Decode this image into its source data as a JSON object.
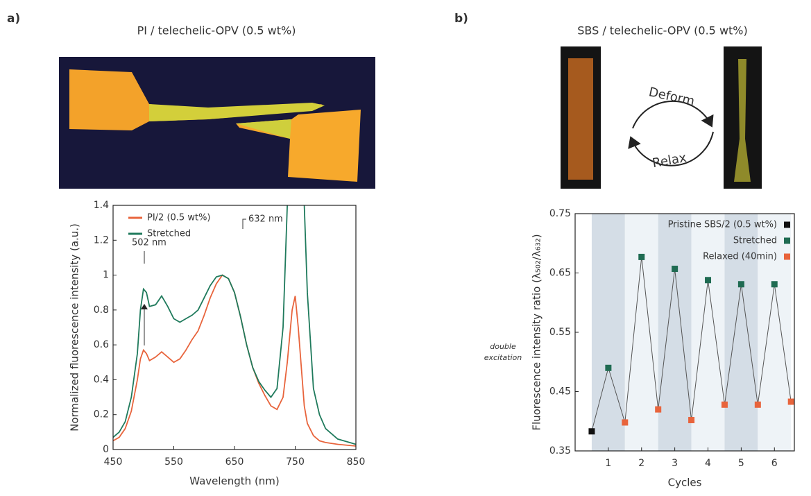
{
  "figure": {
    "panels": [
      {
        "label": "a)"
      },
      {
        "label": "b)",
        "arrows": [
          "Deform",
          "Relax"
        ]
      }
    ]
  },
  "chart_data": [
    {
      "type": "line",
      "title": "PI / telechelic-OPV (0.5 wt%)",
      "x_label": "Wavelength (nm)",
      "y_label": "Normalized fluorescence intensity (a.u.)",
      "x": [
        450,
        460,
        470,
        480,
        490,
        495,
        500,
        505,
        510,
        520,
        530,
        540,
        550,
        560,
        570,
        580,
        590,
        600,
        610,
        620,
        630,
        640,
        650,
        660,
        670,
        680,
        690,
        700,
        710,
        720,
        730,
        737,
        745,
        750,
        755,
        765,
        770,
        780,
        790,
        800,
        820,
        850
      ],
      "series": [
        {
          "name": "PI/2 (0.5 wt%)",
          "color": "#e8643c",
          "values": [
            0.05,
            0.07,
            0.12,
            0.22,
            0.4,
            0.52,
            0.57,
            0.55,
            0.51,
            0.53,
            0.56,
            0.53,
            0.5,
            0.52,
            0.57,
            0.63,
            0.68,
            0.77,
            0.87,
            0.95,
            1.0,
            0.98,
            0.9,
            0.76,
            0.6,
            0.47,
            0.38,
            0.31,
            0.25,
            0.23,
            0.3,
            0.5,
            0.8,
            0.88,
            0.7,
            0.25,
            0.15,
            0.08,
            0.05,
            0.04,
            0.03,
            0.02
          ]
        },
        {
          "name": "Stretched",
          "color": "#1f7a5c",
          "values": [
            0.07,
            0.1,
            0.16,
            0.3,
            0.55,
            0.8,
            0.92,
            0.9,
            0.82,
            0.83,
            0.88,
            0.82,
            0.75,
            0.73,
            0.75,
            0.77,
            0.8,
            0.87,
            0.94,
            0.99,
            1.0,
            0.98,
            0.9,
            0.76,
            0.6,
            0.47,
            0.39,
            0.34,
            0.3,
            0.35,
            0.7,
            1.4,
            null,
            null,
            null,
            1.4,
            0.9,
            0.35,
            0.2,
            0.12,
            0.06,
            0.03
          ]
        }
      ],
      "annotations": [
        "502 nm",
        "632 nm",
        "double",
        "excitation"
      ],
      "xlim": [
        450,
        850
      ],
      "xticks": [
        450,
        550,
        650,
        750,
        850
      ],
      "ylim": [
        0,
        1.4
      ],
      "yticks": [
        0,
        0.2,
        0.4,
        0.6,
        0.8,
        1.0,
        1.2,
        1.4
      ]
    },
    {
      "type": "scatter",
      "title": "SBS / telechelic-OPV (0.5 wt%)",
      "x_label": "Cycles",
      "y_label": "Fluorescence intensity ratio (λ₅₀₂/λ₆₃₂)",
      "x": [
        0.5,
        1,
        1.5,
        2,
        2.5,
        3,
        3.5,
        4,
        4.5,
        5,
        5.5,
        6,
        6.5
      ],
      "values": [
        0.383,
        0.49,
        0.398,
        0.677,
        0.42,
        0.657,
        0.402,
        0.638,
        0.428,
        0.631,
        0.428,
        0.631,
        0.433
      ],
      "marker_colors": [
        "#111111",
        "#1f6b52",
        "#e8643c",
        "#1f6b52",
        "#e8643c",
        "#1f6b52",
        "#e8643c",
        "#1f6b52",
        "#e8643c",
        "#1f6b52",
        "#e8643c",
        "#1f6b52",
        "#e8643c"
      ],
      "legend": [
        {
          "name": "Pristine SBS/2 (0.5 wt%)",
          "color": "#111111"
        },
        {
          "name": "Stretched",
          "color": "#1f6b52"
        },
        {
          "name": "Relaxed (40min)",
          "color": "#e8643c"
        }
      ],
      "line_color": "#555555",
      "xlim": [
        0,
        6.6
      ],
      "xticks": [
        1,
        2,
        3,
        4,
        5,
        6
      ],
      "ylim": [
        0.35,
        0.75
      ],
      "yticks": [
        0.35,
        0.45,
        0.55,
        0.65,
        0.75
      ]
    }
  ]
}
